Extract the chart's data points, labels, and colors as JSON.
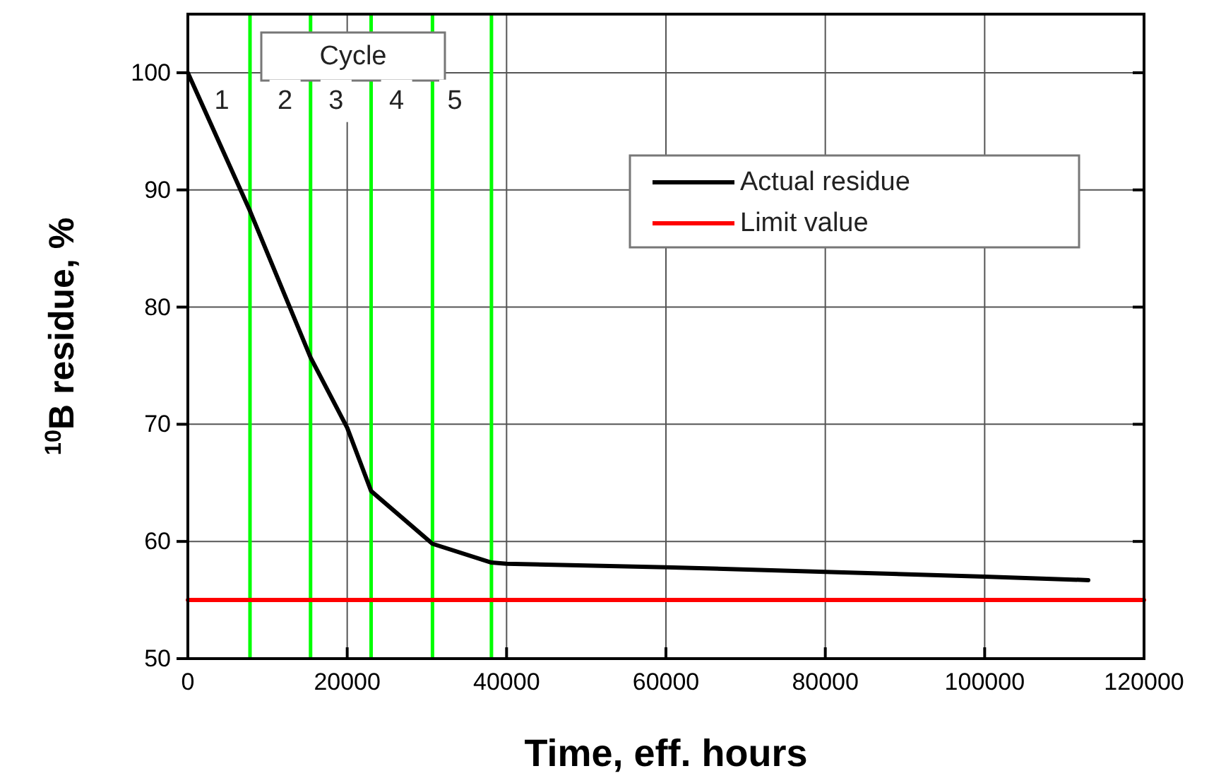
{
  "chart_data": {
    "type": "line",
    "xlabel": "Time, eff. hours",
    "ylabel": "$^{10}$B residue, %",
    "xlim": [
      0,
      120000
    ],
    "ylim": [
      50,
      105
    ],
    "xticks": [
      0,
      20000,
      40000,
      60000,
      80000,
      100000,
      120000
    ],
    "yticks": [
      50,
      60,
      70,
      80,
      90,
      100
    ],
    "grid": true,
    "legend": "top right",
    "marker": "none",
    "line_style": "solid",
    "series": [
      {
        "name": "Actual residue",
        "color": "#000000",
        "x": [
          0,
          7800,
          15400,
          20000,
          23000,
          30700,
          38100,
          40000,
          60000,
          80000,
          100000,
          113000
        ],
        "values": [
          100,
          88.2,
          75.7,
          69.7,
          64.3,
          59.8,
          58.2,
          58.1,
          57.8,
          57.4,
          57.0,
          56.7
        ]
      },
      {
        "name": "Limit value",
        "color": "#ff0000",
        "x": [
          0,
          120000
        ],
        "values": [
          55,
          55
        ]
      }
    ],
    "ref_lines": [
      {
        "axis": "x",
        "value": 7800,
        "color": "#00ff00"
      },
      {
        "axis": "x",
        "value": 15400,
        "color": "#00ff00"
      },
      {
        "axis": "x",
        "value": 23000,
        "color": "#00ff00"
      },
      {
        "axis": "x",
        "value": 30700,
        "color": "#00ff00"
      },
      {
        "axis": "x",
        "value": 38100,
        "color": "#00ff00"
      }
    ],
    "annotations": [
      "Cycle",
      {
        "text": "1",
        "x": 4250,
        "y": 97.6
      },
      {
        "text": "2",
        "x": 12200,
        "y": 97.6
      },
      {
        "text": "3",
        "x": 18600,
        "y": 97.6
      },
      {
        "text": "4",
        "x": 26200,
        "y": 97.6
      },
      {
        "text": "5",
        "x": 33500,
        "y": 97.6
      }
    ]
  }
}
